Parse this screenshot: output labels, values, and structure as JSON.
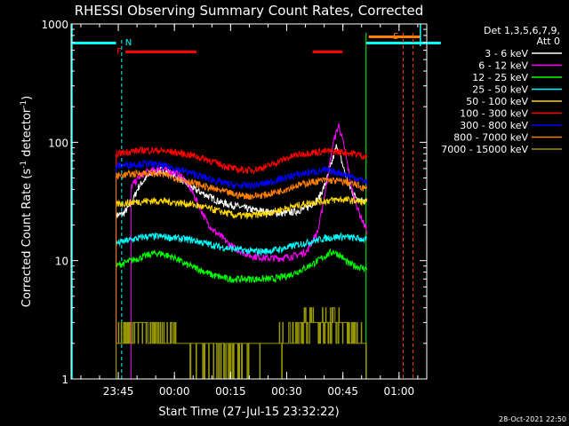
{
  "chart_data": {
    "type": "line",
    "title": "RHESSI Observing Summary Count Rates, Corrected",
    "xlabel": "Start Time (27-Jul-15 23:32:22)",
    "ylabel_prefix": "Corrected Count Rate (s",
    "ylabel_sup1": "-1",
    "ylabel_mid": " detector",
    "ylabel_sup2": "-1",
    "ylabel_suffix": ")",
    "xscale": "time (minutes from 23:32:22)",
    "xlim": [
      0,
      95
    ],
    "yscale": "log",
    "ylim": [
      1,
      1000
    ],
    "x_ticks": [
      {
        "label": "23:45",
        "min": 12.6
      },
      {
        "label": "00:00",
        "min": 27.6
      },
      {
        "label": "00:15",
        "min": 42.6
      },
      {
        "label": "00:30",
        "min": 57.6
      },
      {
        "label": "00:45",
        "min": 72.6
      },
      {
        "label": "01:00",
        "min": 87.6
      }
    ],
    "y_ticks": [
      {
        "label": "1000",
        "value": 1000
      },
      {
        "label": "100",
        "value": 100
      },
      {
        "label": "10",
        "value": 10
      },
      {
        "label": "1",
        "value": 1
      }
    ],
    "legend_header": [
      "Det 1,3,5,6,7,9,",
      "Att 0"
    ],
    "legend_position": "right, outside plot",
    "series": [
      {
        "name": "3 - 6 keV",
        "color": "#ffffff",
        "x": [
          12,
          14,
          16,
          18,
          20,
          22,
          24,
          26,
          28,
          30,
          33,
          36,
          40,
          44,
          48,
          52,
          56,
          60,
          63,
          66,
          68,
          69.5,
          71,
          72.5,
          74,
          75.5,
          77,
          79
        ],
        "y": [
          24,
          25,
          30,
          42,
          50,
          56,
          58,
          56,
          52,
          47,
          40,
          36,
          31,
          29,
          27,
          26,
          25,
          26,
          28,
          33,
          45,
          65,
          95,
          65,
          45,
          36,
          33,
          32
        ]
      },
      {
        "name": "6 - 12 keV",
        "color": "#ff00ff",
        "x": [
          16,
          18,
          20,
          22,
          24,
          26,
          28,
          30,
          32,
          34,
          36,
          38,
          40,
          42,
          44,
          48,
          52,
          56,
          60,
          63,
          66,
          68,
          70,
          71.5,
          73,
          75,
          77,
          79
        ],
        "y": [
          42,
          50,
          56,
          58,
          60,
          57,
          55,
          50,
          40,
          30,
          22,
          18,
          16,
          14,
          12.5,
          11,
          10.5,
          10.5,
          11,
          12,
          18,
          40,
          100,
          140,
          90,
          40,
          25,
          18
        ]
      },
      {
        "name": "12 - 25 keV",
        "color": "#00ff00",
        "x": [
          12,
          14,
          16,
          18,
          20,
          22,
          24,
          26,
          28,
          30,
          34,
          38,
          42,
          46,
          50,
          54,
          58,
          62,
          66,
          68,
          70,
          72,
          74,
          76,
          79
        ],
        "y": [
          9,
          9.5,
          10,
          10.5,
          11,
          11.5,
          11.5,
          11,
          10.5,
          9.5,
          8.5,
          7.5,
          7,
          7,
          7,
          7,
          7.5,
          8.5,
          10,
          11,
          12,
          11,
          9.5,
          9,
          8.5
        ]
      },
      {
        "name": "25 - 50 keV",
        "color": "#00ffff",
        "x": [
          12,
          16,
          20,
          24,
          28,
          32,
          36,
          40,
          44,
          48,
          52,
          56,
          60,
          64,
          68,
          72,
          76,
          79
        ],
        "y": [
          14,
          15,
          16,
          16,
          15.5,
          15,
          14,
          13,
          12.5,
          12,
          12,
          12.5,
          13.5,
          14.5,
          15.5,
          16,
          15.5,
          15
        ]
      },
      {
        "name": "50 - 100 keV",
        "color": "#ffd800",
        "x": [
          12,
          16,
          20,
          24,
          28,
          32,
          36,
          40,
          44,
          48,
          52,
          56,
          60,
          64,
          68,
          72,
          76,
          79
        ],
        "y": [
          30,
          31,
          32,
          32,
          31,
          30,
          28,
          26,
          24,
          24,
          25,
          27,
          29,
          31,
          32,
          33,
          32,
          31
        ]
      },
      {
        "name": "100 - 300 keV",
        "color": "#ff0000",
        "x": [
          12,
          16,
          20,
          24,
          28,
          32,
          36,
          40,
          44,
          48,
          52,
          56,
          60,
          64,
          68,
          72,
          76,
          79
        ],
        "y": [
          80,
          84,
          86,
          85,
          82,
          78,
          72,
          65,
          59,
          58,
          62,
          70,
          78,
          82,
          84,
          83,
          80,
          75
        ]
      },
      {
        "name": "300 - 800 keV",
        "color": "#0000ff",
        "x": [
          12,
          16,
          20,
          24,
          28,
          32,
          36,
          40,
          44,
          48,
          52,
          56,
          60,
          64,
          68,
          72,
          76,
          79
        ],
        "y": [
          63,
          65,
          66,
          64,
          60,
          55,
          50,
          46,
          43,
          43,
          45,
          49,
          53,
          56,
          58,
          55,
          50,
          46
        ]
      },
      {
        "name": "800 - 7000 keV",
        "color": "#ff8000",
        "x": [
          12,
          16,
          20,
          24,
          28,
          32,
          36,
          40,
          44,
          48,
          52,
          56,
          60,
          64,
          68,
          72,
          76,
          79
        ],
        "y": [
          52,
          54,
          55,
          54,
          50,
          46,
          42,
          39,
          36,
          35,
          36,
          39,
          43,
          46,
          48,
          47,
          44,
          40
        ]
      },
      {
        "name": "7000 - 15000 keV",
        "color": "#9a9a00",
        "x": [
          12,
          14,
          16,
          18,
          20,
          22,
          24,
          26,
          28,
          30,
          34,
          38,
          42,
          46,
          50,
          54,
          58,
          60,
          62,
          64,
          66,
          68,
          70,
          72,
          74,
          76,
          78,
          79
        ],
        "y": [
          2,
          2,
          2.5,
          2.8,
          2.5,
          2.3,
          2.2,
          2.1,
          2,
          1.8,
          1.6,
          1.6,
          1.6,
          1.7,
          1.8,
          1.8,
          1.9,
          2.2,
          2.7,
          2.9,
          2.8,
          2.6,
          2.9,
          2.7,
          2.4,
          2.2,
          1.9,
          1.7
        ]
      }
    ],
    "markers": [
      {
        "label": "N",
        "min": 13,
        "color": "#00ffff"
      },
      {
        "label": "F",
        "min": 14,
        "color": "#ff0000"
      },
      {
        "label": "S",
        "min": 88,
        "color": "#ff8000"
      }
    ],
    "annotations": {
      "timestamp": "28-Oct-2021 22:50"
    }
  }
}
